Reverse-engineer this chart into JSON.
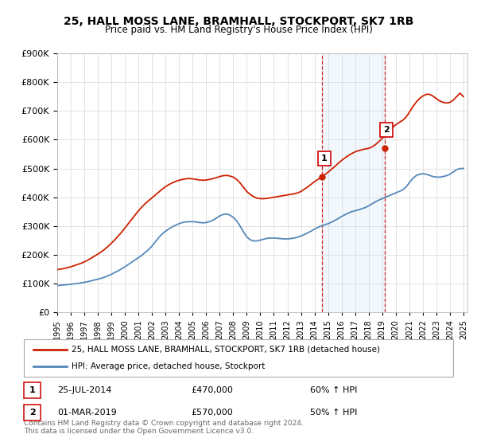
{
  "title": "25, HALL MOSS LANE, BRAMHALL, STOCKPORT, SK7 1RB",
  "subtitle": "Price paid vs. HM Land Registry's House Price Index (HPI)",
  "background_color": "#ffffff",
  "plot_bg_color": "#ffffff",
  "grid_color": "#dddddd",
  "sale1_year": 2014.58,
  "sale1_price": 470000,
  "sale2_year": 2019.17,
  "sale2_price": 570000,
  "shaded_color": "#cce0f0",
  "vline_color": "#cc0000",
  "legend_line1_color": "#cc2200",
  "legend_line2_color": "#5588bb",
  "legend_label1": "25, HALL MOSS LANE, BRAMHALL, STOCKPORT, SK7 1RB (detached house)",
  "legend_label2": "HPI: Average price, detached house, Stockport",
  "annotation1_num": "1",
  "annotation1_date": "25-JUL-2014",
  "annotation1_price": "£470,000",
  "annotation1_hpi": "60% ↑ HPI",
  "annotation2_num": "2",
  "annotation2_date": "01-MAR-2019",
  "annotation2_price": "£570,000",
  "annotation2_hpi": "50% ↑ HPI",
  "footer": "Contains HM Land Registry data © Crown copyright and database right 2024.\nThis data is licensed under the Open Government Licence v3.0.",
  "ylim": [
    0,
    900000
  ],
  "xlim_start": 1995.0,
  "xlim_end": 2025.3,
  "years_hpi": [
    1995.0,
    1995.25,
    1995.5,
    1995.75,
    1996.0,
    1996.25,
    1996.5,
    1996.75,
    1997.0,
    1997.25,
    1997.5,
    1997.75,
    1998.0,
    1998.25,
    1998.5,
    1998.75,
    1999.0,
    1999.25,
    1999.5,
    1999.75,
    2000.0,
    2000.25,
    2000.5,
    2000.75,
    2001.0,
    2001.25,
    2001.5,
    2001.75,
    2002.0,
    2002.25,
    2002.5,
    2002.75,
    2003.0,
    2003.25,
    2003.5,
    2003.75,
    2004.0,
    2004.25,
    2004.5,
    2004.75,
    2005.0,
    2005.25,
    2005.5,
    2005.75,
    2006.0,
    2006.25,
    2006.5,
    2006.75,
    2007.0,
    2007.25,
    2007.5,
    2007.75,
    2008.0,
    2008.25,
    2008.5,
    2008.75,
    2009.0,
    2009.25,
    2009.5,
    2009.75,
    2010.0,
    2010.25,
    2010.5,
    2010.75,
    2011.0,
    2011.25,
    2011.5,
    2011.75,
    2012.0,
    2012.25,
    2012.5,
    2012.75,
    2013.0,
    2013.25,
    2013.5,
    2013.75,
    2014.0,
    2014.25,
    2014.5,
    2014.75,
    2015.0,
    2015.25,
    2015.5,
    2015.75,
    2016.0,
    2016.25,
    2016.5,
    2016.75,
    2017.0,
    2017.25,
    2017.5,
    2017.75,
    2018.0,
    2018.25,
    2018.5,
    2018.75,
    2019.0,
    2019.25,
    2019.5,
    2019.75,
    2020.0,
    2020.25,
    2020.5,
    2020.75,
    2021.0,
    2021.25,
    2021.5,
    2021.75,
    2022.0,
    2022.25,
    2022.5,
    2022.75,
    2023.0,
    2023.25,
    2023.5,
    2023.75,
    2024.0,
    2024.25,
    2024.5,
    2024.75,
    2025.0
  ],
  "hpi_values": [
    93000,
    94000,
    95000,
    96000,
    97000,
    98500,
    100000,
    102000,
    104000,
    106000,
    109000,
    112000,
    115000,
    118000,
    122000,
    127000,
    132000,
    138000,
    144000,
    151000,
    158000,
    166000,
    174000,
    182000,
    190000,
    198000,
    208000,
    218000,
    230000,
    245000,
    260000,
    272000,
    282000,
    290000,
    297000,
    303000,
    308000,
    312000,
    314000,
    315000,
    315000,
    314000,
    312000,
    311000,
    312000,
    315000,
    320000,
    327000,
    335000,
    340000,
    342000,
    338000,
    330000,
    318000,
    300000,
    280000,
    262000,
    252000,
    248000,
    248000,
    251000,
    254000,
    257000,
    258000,
    258000,
    257000,
    256000,
    255000,
    255000,
    256000,
    258000,
    261000,
    265000,
    270000,
    276000,
    282000,
    289000,
    295000,
    300000,
    304000,
    308000,
    313000,
    319000,
    326000,
    333000,
    339000,
    345000,
    350000,
    353000,
    356000,
    360000,
    364000,
    370000,
    377000,
    384000,
    390000,
    395000,
    400000,
    405000,
    410000,
    415000,
    420000,
    425000,
    435000,
    450000,
    465000,
    475000,
    480000,
    482000,
    480000,
    476000,
    472000,
    470000,
    470000,
    472000,
    475000,
    480000,
    488000,
    496000,
    500000,
    500000
  ],
  "years_red": [
    1995.0,
    1995.25,
    1995.5,
    1995.75,
    1996.0,
    1996.25,
    1996.5,
    1996.75,
    1997.0,
    1997.25,
    1997.5,
    1997.75,
    1998.0,
    1998.25,
    1998.5,
    1998.75,
    1999.0,
    1999.25,
    1999.5,
    1999.75,
    2000.0,
    2000.25,
    2000.5,
    2000.75,
    2001.0,
    2001.25,
    2001.5,
    2001.75,
    2002.0,
    2002.25,
    2002.5,
    2002.75,
    2003.0,
    2003.25,
    2003.5,
    2003.75,
    2004.0,
    2004.25,
    2004.5,
    2004.75,
    2005.0,
    2005.25,
    2005.5,
    2005.75,
    2006.0,
    2006.25,
    2006.5,
    2006.75,
    2007.0,
    2007.25,
    2007.5,
    2007.75,
    2008.0,
    2008.25,
    2008.5,
    2008.75,
    2009.0,
    2009.25,
    2009.5,
    2009.75,
    2010.0,
    2010.25,
    2010.5,
    2010.75,
    2011.0,
    2011.25,
    2011.5,
    2011.75,
    2012.0,
    2012.25,
    2012.5,
    2012.75,
    2013.0,
    2013.25,
    2013.5,
    2013.75,
    2014.0,
    2014.25,
    2014.5,
    2014.75,
    2015.0,
    2015.25,
    2015.5,
    2015.75,
    2016.0,
    2016.25,
    2016.5,
    2016.75,
    2017.0,
    2017.25,
    2017.5,
    2017.75,
    2018.0,
    2018.25,
    2018.5,
    2018.75,
    2019.0,
    2019.25,
    2019.5,
    2019.75,
    2020.0,
    2020.25,
    2020.5,
    2020.75,
    2021.0,
    2021.25,
    2021.5,
    2021.75,
    2022.0,
    2022.25,
    2022.5,
    2022.75,
    2023.0,
    2023.25,
    2023.5,
    2023.75,
    2024.0,
    2024.25,
    2024.5,
    2024.75,
    2025.0
  ],
  "red_values": [
    148000,
    150000,
    152000,
    155000,
    158000,
    162000,
    166000,
    170000,
    175000,
    181000,
    188000,
    195000,
    202000,
    210000,
    219000,
    229000,
    240000,
    252000,
    265000,
    278000,
    293000,
    308000,
    323000,
    338000,
    353000,
    366000,
    378000,
    388000,
    398000,
    408000,
    418000,
    428000,
    437000,
    444000,
    450000,
    455000,
    459000,
    462000,
    464000,
    465000,
    464000,
    462000,
    460000,
    459000,
    460000,
    462000,
    465000,
    468000,
    472000,
    475000,
    476000,
    474000,
    470000,
    462000,
    450000,
    435000,
    420000,
    410000,
    402000,
    397000,
    395000,
    395000,
    396000,
    398000,
    400000,
    402000,
    404000,
    406000,
    408000,
    410000,
    412000,
    415000,
    420000,
    428000,
    436000,
    445000,
    454000,
    462000,
    470000,
    478000,
    487000,
    497000,
    507000,
    518000,
    528000,
    537000,
    545000,
    552000,
    558000,
    562000,
    565000,
    568000,
    570000,
    575000,
    583000,
    593000,
    605000,
    618000,
    630000,
    642000,
    652000,
    660000,
    667000,
    678000,
    695000,
    714000,
    730000,
    743000,
    752000,
    758000,
    758000,
    752000,
    743000,
    735000,
    730000,
    728000,
    730000,
    738000,
    750000,
    762000,
    750000
  ]
}
